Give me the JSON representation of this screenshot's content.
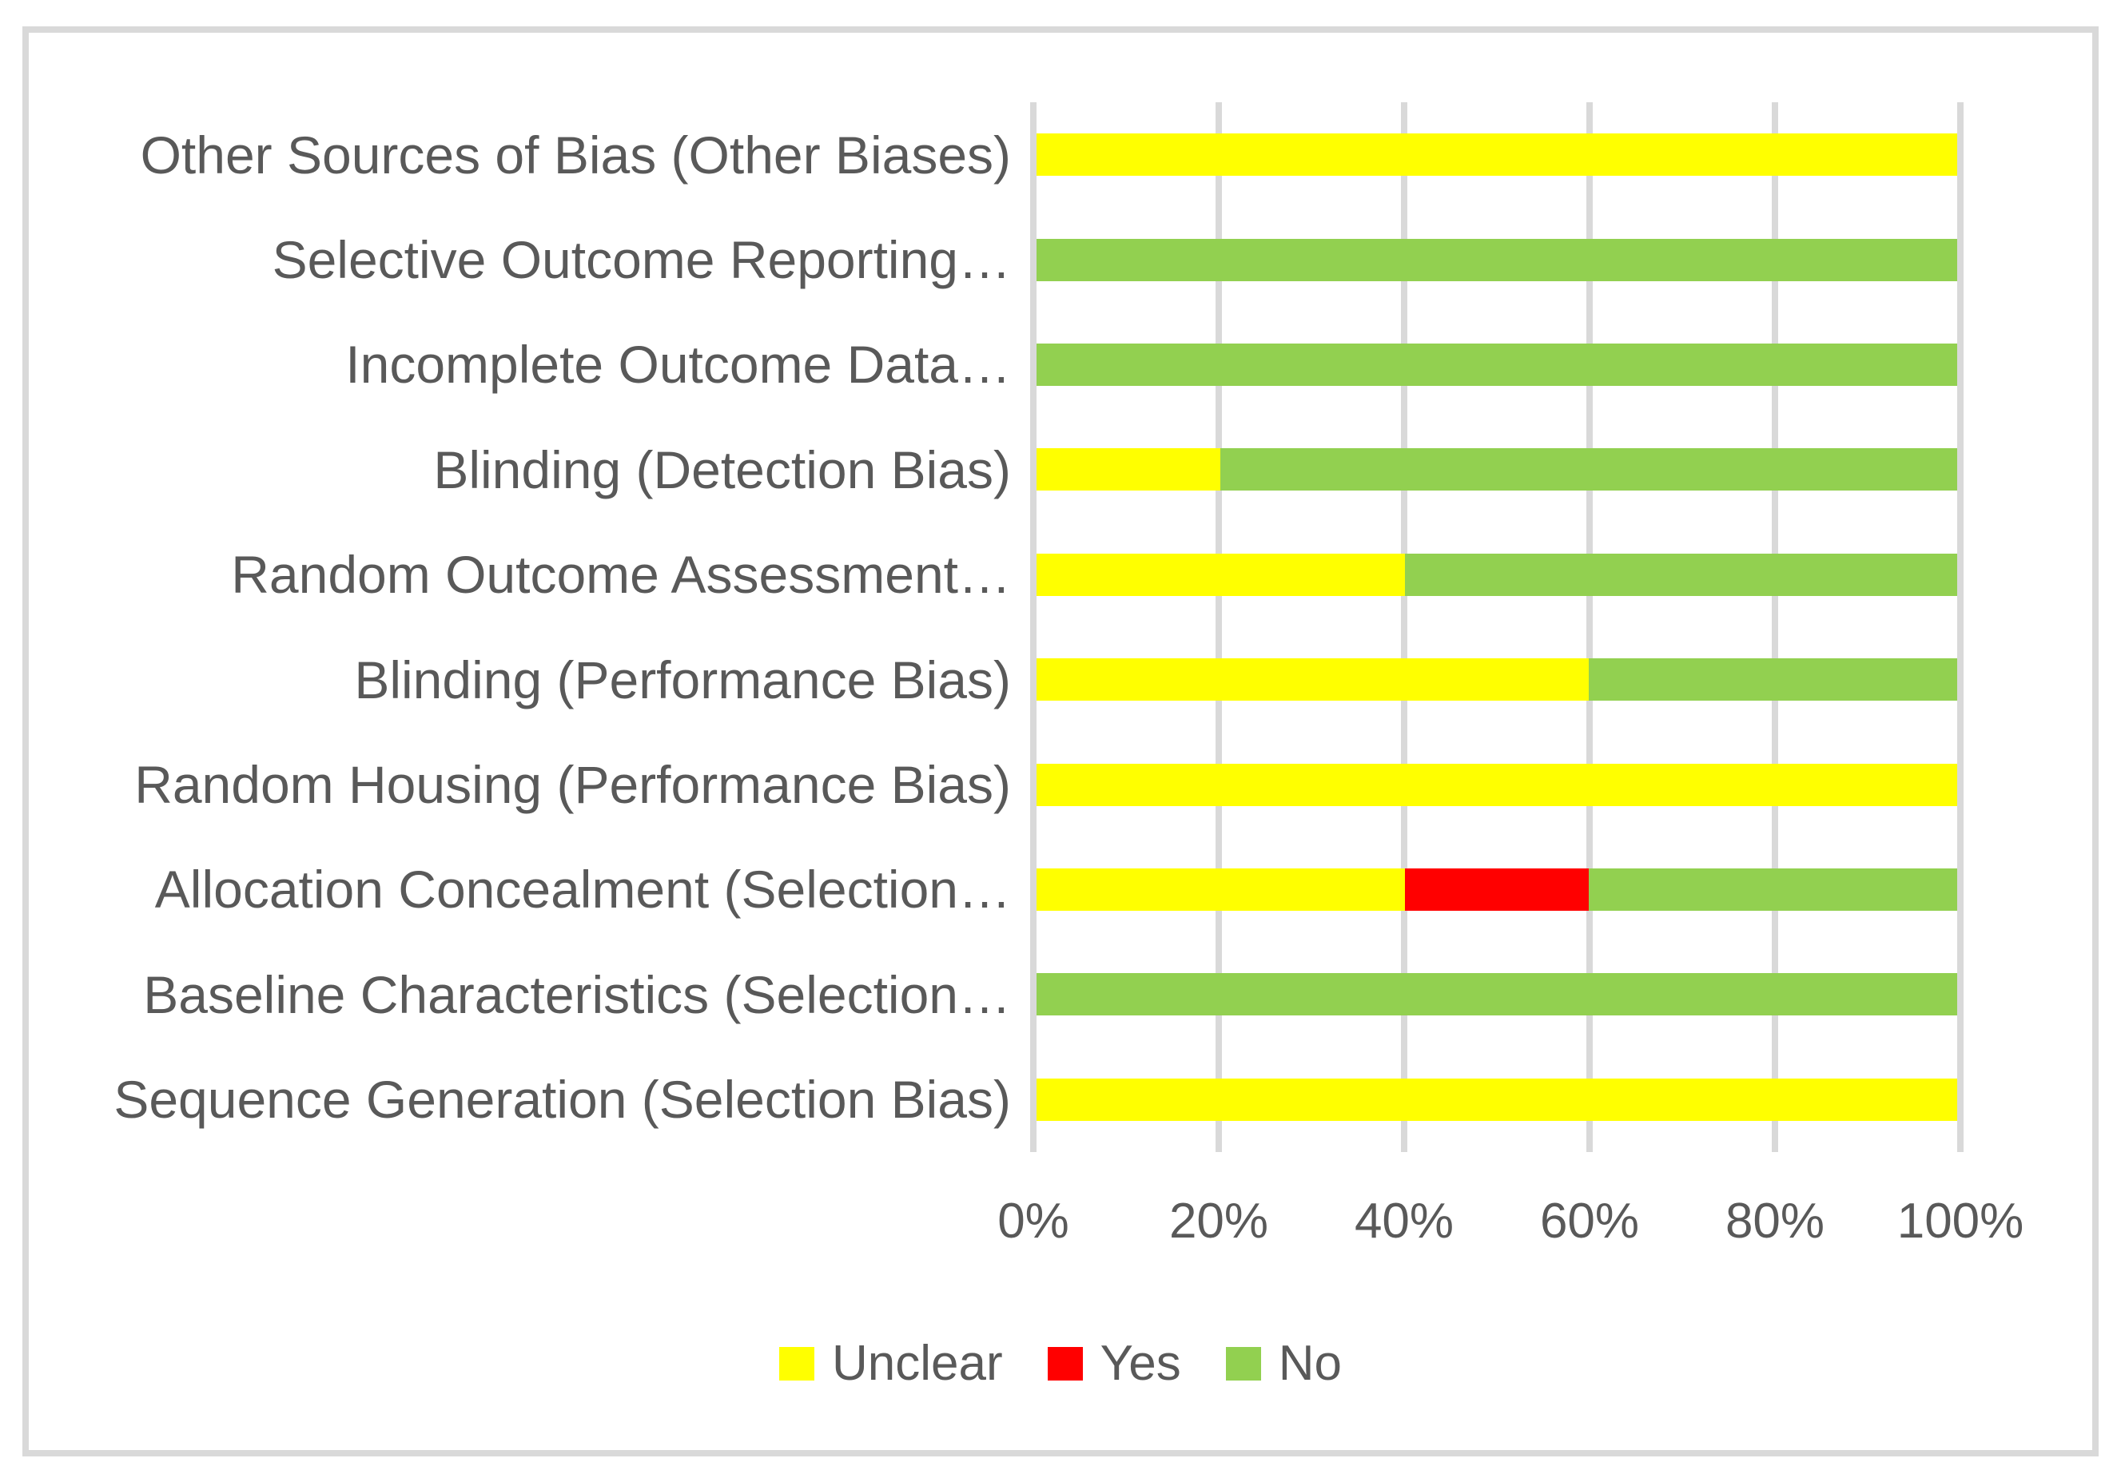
{
  "colors": {
    "unclear": "#FFFF00",
    "yes": "#FF0000",
    "no": "#92D050",
    "gridline": "#D9D9D9",
    "frame_border": "#D9D9D9",
    "text": "#595959",
    "background": "#FFFFFF"
  },
  "chart_data": {
    "type": "bar",
    "orientation": "horizontal",
    "stacked": true,
    "units": "percent",
    "title": "",
    "xlabel": "",
    "ylabel": "",
    "xlim": [
      0,
      100
    ],
    "grid": "vertical-only",
    "legend_position": "bottom-center",
    "categories": [
      "Other Sources of Bias (Other Biases)",
      "Selective Outcome Reporting…",
      "Incomplete Outcome Data…",
      "Blinding (Detection Bias)",
      "Random Outcome Assessment…",
      "Blinding (Performance Bias)",
      "Random Housing (Performance Bias)",
      "Allocation Concealment (Selection…",
      "Baseline Characteristics (Selection…",
      "Sequence Generation (Selection Bias)"
    ],
    "series": [
      {
        "name": "Unclear",
        "color": "#FFFF00",
        "values": [
          100,
          0,
          0,
          20,
          40,
          60,
          100,
          40,
          0,
          100
        ]
      },
      {
        "name": "Yes",
        "color": "#FF0000",
        "values": [
          0,
          0,
          0,
          0,
          0,
          0,
          0,
          20,
          0,
          0
        ]
      },
      {
        "name": "No",
        "color": "#92D050",
        "values": [
          0,
          100,
          100,
          80,
          60,
          40,
          0,
          40,
          100,
          0
        ]
      }
    ],
    "x_ticks": [
      "0%",
      "20%",
      "40%",
      "60%",
      "80%",
      "100%"
    ]
  }
}
